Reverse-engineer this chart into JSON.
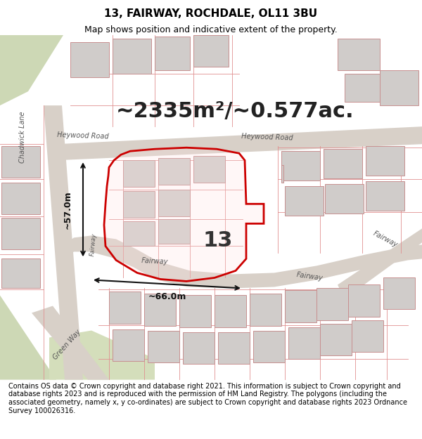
{
  "title": "13, FAIRWAY, ROCHDALE, OL11 3BU",
  "subtitle": "Map shows position and indicative extent of the property.",
  "footer": "Contains OS data © Crown copyright and database right 2021. This information is subject to Crown copyright and database rights 2023 and is reproduced with the permission of HM Land Registry. The polygons (including the associated geometry, namely x, y co-ordinates) are subject to Crown copyright and database rights 2023 Ordnance Survey 100026316.",
  "area_text": "~2335m²/~0.577ac.",
  "label_13": "13",
  "dim_57": "~57.0m",
  "dim_66": "~66.0m",
  "bg_color": "#f5f0eb",
  "map_bg": "#ece8e2",
  "road_color": "#d8d0c8",
  "plot_line_color": "#cc0000",
  "green_area": "#c8d8b0",
  "title_fontsize": 11,
  "subtitle_fontsize": 9,
  "area_fontsize": 22,
  "footer_fontsize": 7
}
